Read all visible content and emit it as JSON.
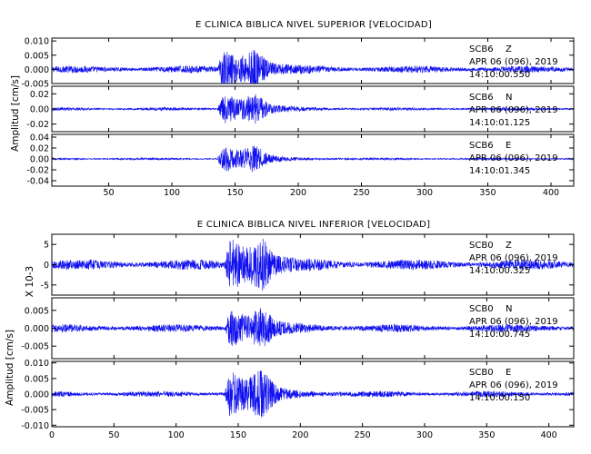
{
  "chart_data": [
    {
      "type": "line",
      "title": "E CLINICA BIBLICA NIVEL SUPERIOR [VELOCIDAD]",
      "ylabel": "Amplitud [cm/s]",
      "ylabel_multiplier": "",
      "xlim": [
        5,
        418
      ],
      "xticks": [
        "50",
        "100",
        "150",
        "200",
        "250",
        "300",
        "350",
        "400"
      ],
      "event_center": 152,
      "panels": [
        {
          "station": "SCB6",
          "component": "Z",
          "date": "APR 06 (096), 2019",
          "time": "14:10:00.550",
          "ylim": [
            -0.005,
            0.011
          ],
          "yticks": [
            "0.010",
            "0.005",
            "0.000",
            "-0.005"
          ],
          "noise_amplitude": 0.0009,
          "peak_amplitude": 0.006
        },
        {
          "station": "SCB6",
          "component": "N",
          "date": "APR 06 (096), 2019",
          "time": "14:10:01.125",
          "ylim": [
            -0.03,
            0.03
          ],
          "yticks": [
            "0.02",
            "0.00",
            "-0.02"
          ],
          "noise_amplitude": 0.0015,
          "peak_amplitude": 0.018
        },
        {
          "station": "SCB6",
          "component": "E",
          "date": "APR 06 (096), 2019",
          "time": "14:10:01.345",
          "ylim": [
            -0.05,
            0.045
          ],
          "yticks": [
            "0.04",
            "0.02",
            "0.00",
            "-0.02",
            "-0.04"
          ],
          "noise_amplitude": 0.0015,
          "peak_amplitude": 0.022
        }
      ]
    },
    {
      "type": "line",
      "title": "E CLINICA BIBLICA NIVEL INFERIOR [VELOCIDAD]",
      "ylabel": "Amplitud [cm/s]",
      "ylabel_multiplier": "X 10-3",
      "xlim": [
        0,
        420
      ],
      "xticks": [
        "0",
        "50",
        "100",
        "150",
        "200",
        "250",
        "300",
        "350",
        "400"
      ],
      "event_center": 155,
      "panels": [
        {
          "station": "SCB0",
          "component": "Z",
          "date": "APR 06 (096), 2019",
          "time": "14:10:00.325",
          "ylim": [
            -7.5,
            7.5
          ],
          "yticks": [
            "5",
            "0",
            "-5"
          ],
          "noise_amplitude": 0.9,
          "peak_amplitude": 5.5
        },
        {
          "station": "SCB0",
          "component": "N",
          "date": "APR 06 (096), 2019",
          "time": "14:10:00.745",
          "ylim": [
            -0.0085,
            0.0085
          ],
          "yticks": [
            "0.005",
            "0.000",
            "-0.005"
          ],
          "noise_amplitude": 0.0008,
          "peak_amplitude": 0.0045
        },
        {
          "station": "SCB0",
          "component": "E",
          "date": "APR 06 (096), 2019",
          "time": "14:10:00.150",
          "ylim": [
            -0.0105,
            0.0105
          ],
          "yticks": [
            "0.010",
            "0.005",
            "0.000",
            "-0.005",
            "-0.010"
          ],
          "noise_amplitude": 0.0007,
          "peak_amplitude": 0.0065
        }
      ]
    }
  ],
  "colors": {
    "trace": "#1010ee",
    "axes": "#000000"
  }
}
